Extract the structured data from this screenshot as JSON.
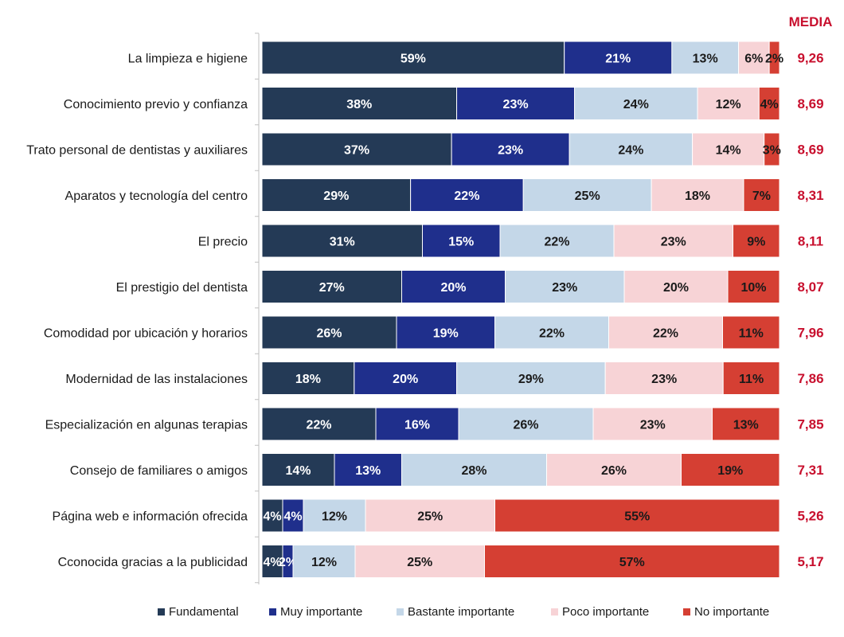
{
  "chart_data": {
    "type": "bar",
    "orientation": "horizontal",
    "stacked": true,
    "percent": true,
    "categories": [
      "La limpieza e higiene",
      "Conocimiento previo y confianza",
      "Trato personal de dentistas y auxiliares",
      "Aparatos y tecnología del centro",
      "El precio",
      "El prestigio del dentista",
      "Comodidad por ubicación y horarios",
      "Modernidad de las instalaciones",
      "Especialización en algunas terapias",
      "Consejo de familiares o amigos",
      "Página web e información ofrecida",
      "Cconocida gracias a la publicidad"
    ],
    "series": [
      {
        "name": "Fundamental",
        "color": "#243a56",
        "label_color": "#ffffff",
        "values": [
          59,
          38,
          37,
          29,
          31,
          27,
          26,
          18,
          22,
          14,
          4,
          4
        ]
      },
      {
        "name": "Muy importante",
        "color": "#1f2f8c",
        "label_color": "#ffffff",
        "values": [
          21,
          23,
          23,
          22,
          15,
          20,
          19,
          20,
          16,
          13,
          4,
          2
        ]
      },
      {
        "name": "Bastante importante",
        "color": "#c4d7e8",
        "label_color": "#1a1a1a",
        "values": [
          13,
          24,
          24,
          25,
          22,
          23,
          22,
          29,
          26,
          28,
          12,
          12
        ]
      },
      {
        "name": "Poco importante",
        "color": "#f7d3d6",
        "label_color": "#1a1a1a",
        "values": [
          6,
          12,
          14,
          18,
          23,
          20,
          22,
          23,
          23,
          26,
          25,
          25
        ]
      },
      {
        "name": "No importante",
        "color": "#d53f33",
        "label_color": "#1a1a1a",
        "values": [
          2,
          4,
          3,
          7,
          9,
          10,
          11,
          11,
          13,
          19,
          55,
          57
        ]
      }
    ],
    "mean_header": "MEDIA",
    "means": [
      "9,26",
      "8,69",
      "8,69",
      "8,31",
      "8,11",
      "8,07",
      "7,96",
      "7,86",
      "7,85",
      "7,31",
      "5,26",
      "5,17"
    ],
    "mean_color": "#c8102e",
    "legend_position": "bottom",
    "grid": false
  }
}
